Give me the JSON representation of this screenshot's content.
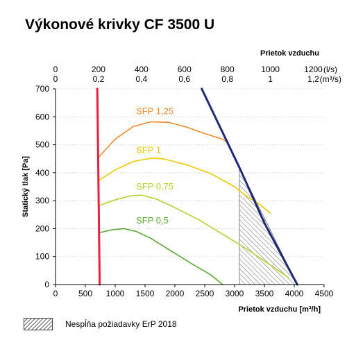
{
  "chart_data": {
    "type": "line",
    "title": "Výkonové krivky CF 3500 U",
    "xlabel": "Prietok vzduchu [m³/h]",
    "ylabel": "Statický tlak [Pa]",
    "x_ticks": [
      0,
      500,
      1000,
      1500,
      2000,
      2500,
      3000,
      3500,
      4000,
      4500
    ],
    "y_ticks": [
      0,
      100,
      200,
      300,
      400,
      500,
      600,
      700
    ],
    "xlim": [
      0,
      4500
    ],
    "ylim": [
      0,
      700
    ],
    "grid": "horizontal",
    "secondary_axis": {
      "label": "Prietok vzduchu",
      "ticks_ls": [
        "0",
        "200",
        "400",
        "600",
        "800",
        "1000",
        "1200"
      ],
      "ticks_m3s": [
        "0",
        "0,2",
        "0,4",
        "0,6",
        "0,8",
        "1",
        "1,2"
      ],
      "unit_ls": "(l/s)",
      "unit_m3s": "(m³/s)"
    },
    "series": [
      {
        "name": "SFP 1,25",
        "color": "#ee8a28",
        "x": [
          720,
          1000,
          1300,
          1600,
          1900,
          2200,
          2500,
          2800,
          2900
        ],
        "y": [
          455,
          520,
          565,
          582,
          580,
          563,
          540,
          520,
          505
        ]
      },
      {
        "name": "SFP 1",
        "color": "#f0c800",
        "x": [
          720,
          1000,
          1300,
          1600,
          1800,
          2200,
          2600,
          3000,
          3200,
          3400,
          3600
        ],
        "y": [
          372,
          410,
          440,
          452,
          450,
          428,
          397,
          350,
          316,
          290,
          255
        ]
      },
      {
        "name": "SFP 0,75",
        "color": "#b8d030",
        "x": [
          720,
          1000,
          1250,
          1450,
          1700,
          2000,
          2400,
          2800,
          3200,
          3600,
          3900
        ],
        "y": [
          282,
          303,
          317,
          320,
          305,
          275,
          232,
          180,
          128,
          70,
          25
        ]
      },
      {
        "name": "SFP 0,5",
        "color": "#5aaa32",
        "x": [
          720,
          950,
          1150,
          1350,
          1600,
          1900,
          2300,
          2600,
          2800
        ],
        "y": [
          185,
          196,
          200,
          190,
          165,
          125,
          72,
          35,
          0
        ]
      },
      {
        "name": "",
        "color": "#e8203c",
        "x": [
          700,
          740
        ],
        "y": [
          700,
          0
        ]
      },
      {
        "name": "",
        "color": "#1e2a78",
        "x": [
          2450,
          3100,
          3500,
          4050
        ],
        "y": [
          700,
          410,
          220,
          0
        ]
      }
    ],
    "hatched_region": {
      "polygon": [
        [
          3080,
          0
        ],
        [
          3080,
          410
        ],
        [
          3100,
          410
        ],
        [
          4050,
          0
        ]
      ]
    }
  },
  "sfp_labels": [
    {
      "text": "SFP 1,25",
      "color": "#ee8a28",
      "x": 1350,
      "y": 610
    },
    {
      "text": "SFP 1",
      "color": "#f0c800",
      "x": 1350,
      "y": 470
    },
    {
      "text": "SFP 0,75",
      "color": "#b8d030",
      "x": 1350,
      "y": 340
    },
    {
      "text": "SFP 0,5",
      "color": "#5aaa32",
      "x": 1350,
      "y": 218
    }
  ],
  "legend": {
    "text": "Nespĺňa požiadavky ErP 2018"
  }
}
